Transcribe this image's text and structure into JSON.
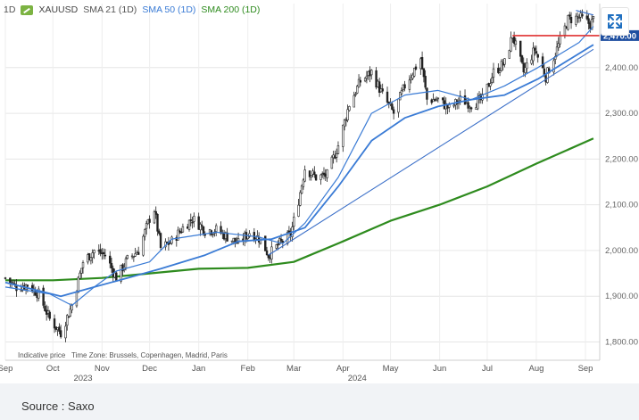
{
  "legend": {
    "timeframe": "1D",
    "symbol": "XAUUSD",
    "sma21": "SMA 21 (1D)",
    "sma50": "SMA 50 (1D)",
    "sma200": "SMA 200 (1D)"
  },
  "footnote": {
    "indicative": "Indicative price",
    "timezone": "Time Zone: Brussels, Copenhagen, Madrid, Paris"
  },
  "source": "Source : Saxo",
  "colors": {
    "candle": "#222222",
    "sma21": "#3a7bd5",
    "sma50": "#3a7bd5",
    "sma200": "#2e8b1e",
    "level": "#e03030",
    "price_tag": "#1f4fa0",
    "legend_badge": "#7cb342"
  },
  "icons": {
    "expand": "expand-arrows-icon",
    "symbol": "gold-badge-icon"
  },
  "chart_data": {
    "type": "candlestick",
    "x_range": [
      "2023-09-01",
      "2024-09-10"
    ],
    "ylim": [
      1760,
      2540
    ],
    "y_ticks": [
      "1,800.00",
      "1,900.00",
      "2,000.00",
      "2,100.00",
      "2,200.00",
      "2,300.00",
      "2,400.00"
    ],
    "x_ticks": [
      {
        "date": "2023-09-01",
        "label": "Sep"
      },
      {
        "date": "2023-10-01",
        "label": "Oct"
      },
      {
        "date": "2023-11-01",
        "label": "Nov"
      },
      {
        "date": "2023-12-01",
        "label": "Dec"
      },
      {
        "date": "2024-01-01",
        "label": "Jan"
      },
      {
        "date": "2024-02-01",
        "label": "Feb"
      },
      {
        "date": "2024-03-01",
        "label": "Mar"
      },
      {
        "date": "2024-04-01",
        "label": "Apr"
      },
      {
        "date": "2024-05-01",
        "label": "May"
      },
      {
        "date": "2024-06-01",
        "label": "Jun"
      },
      {
        "date": "2024-07-01",
        "label": "Jul"
      },
      {
        "date": "2024-08-01",
        "label": "Aug"
      },
      {
        "date": "2024-09-01",
        "label": "Sep"
      }
    ],
    "year_labels": [
      {
        "date": "2023-10-20",
        "label": "2023"
      },
      {
        "date": "2024-04-10",
        "label": "2024"
      }
    ],
    "current_price": {
      "value": 2470,
      "label": "2,470.00"
    },
    "close_path": [
      [
        "2023-09-01",
        1940
      ],
      [
        "2023-09-08",
        1920
      ],
      [
        "2023-09-15",
        1925
      ],
      [
        "2023-09-22",
        1905
      ],
      [
        "2023-09-29",
        1850
      ],
      [
        "2023-10-06",
        1820
      ],
      [
        "2023-10-13",
        1880
      ],
      [
        "2023-10-20",
        1975
      ],
      [
        "2023-10-27",
        2000
      ],
      [
        "2023-11-03",
        1990
      ],
      [
        "2023-11-10",
        1940
      ],
      [
        "2023-11-17",
        1980
      ],
      [
        "2023-11-24",
        2000
      ],
      [
        "2023-12-01",
        2070
      ],
      [
        "2023-12-04",
        2090
      ],
      [
        "2023-12-08",
        2005
      ],
      [
        "2023-12-15",
        2020
      ],
      [
        "2023-12-22",
        2050
      ],
      [
        "2023-12-28",
        2070
      ],
      [
        "2024-01-05",
        2045
      ],
      [
        "2024-01-12",
        2045
      ],
      [
        "2024-01-19",
        2030
      ],
      [
        "2024-01-26",
        2015
      ],
      [
        "2024-02-02",
        2040
      ],
      [
        "2024-02-09",
        2025
      ],
      [
        "2024-02-14",
        1990
      ],
      [
        "2024-02-21",
        2015
      ],
      [
        "2024-02-28",
        2035
      ],
      [
        "2024-03-04",
        2110
      ],
      [
        "2024-03-08",
        2180
      ],
      [
        "2024-03-15",
        2160
      ],
      [
        "2024-03-22",
        2165
      ],
      [
        "2024-03-29",
        2230
      ],
      [
        "2024-04-05",
        2320
      ],
      [
        "2024-04-12",
        2370
      ],
      [
        "2024-04-19",
        2390
      ],
      [
        "2024-04-26",
        2340
      ],
      [
        "2024-05-03",
        2300
      ],
      [
        "2024-05-10",
        2360
      ],
      [
        "2024-05-20",
        2420
      ],
      [
        "2024-05-24",
        2330
      ],
      [
        "2024-05-31",
        2330
      ],
      [
        "2024-06-07",
        2310
      ],
      [
        "2024-06-14",
        2330
      ],
      [
        "2024-06-21",
        2320
      ],
      [
        "2024-06-28",
        2330
      ],
      [
        "2024-07-05",
        2390
      ],
      [
        "2024-07-12",
        2410
      ],
      [
        "2024-07-17",
        2470
      ],
      [
        "2024-07-24",
        2390
      ],
      [
        "2024-07-31",
        2440
      ],
      [
        "2024-08-07",
        2380
      ],
      [
        "2024-08-14",
        2440
      ],
      [
        "2024-08-21",
        2505
      ],
      [
        "2024-08-28",
        2510
      ],
      [
        "2024-09-04",
        2495
      ],
      [
        "2024-09-06",
        2505
      ]
    ],
    "series": [
      {
        "name": "SMA 21 (1D)",
        "values": [
          [
            "2023-09-01",
            1920
          ],
          [
            "2023-09-29",
            1905
          ],
          [
            "2023-10-13",
            1880
          ],
          [
            "2023-10-27",
            1920
          ],
          [
            "2023-11-10",
            1955
          ],
          [
            "2023-12-01",
            1975
          ],
          [
            "2023-12-15",
            2025
          ],
          [
            "2024-01-12",
            2040
          ],
          [
            "2024-02-07",
            2030
          ],
          [
            "2024-02-23",
            2015
          ],
          [
            "2024-03-08",
            2060
          ],
          [
            "2024-03-29",
            2160
          ],
          [
            "2024-04-19",
            2300
          ],
          [
            "2024-05-10",
            2340
          ],
          [
            "2024-05-31",
            2350
          ],
          [
            "2024-06-21",
            2330
          ],
          [
            "2024-07-12",
            2360
          ],
          [
            "2024-08-02",
            2400
          ],
          [
            "2024-08-28",
            2455
          ],
          [
            "2024-09-06",
            2490
          ]
        ]
      },
      {
        "name": "SMA 50 (1D)",
        "values": [
          [
            "2023-09-01",
            1930
          ],
          [
            "2023-10-06",
            1900
          ],
          [
            "2023-10-27",
            1920
          ],
          [
            "2023-11-17",
            1940
          ],
          [
            "2023-12-08",
            1960
          ],
          [
            "2024-01-05",
            1990
          ],
          [
            "2024-01-26",
            2020
          ],
          [
            "2024-02-16",
            2025
          ],
          [
            "2024-03-08",
            2050
          ],
          [
            "2024-03-29",
            2140
          ],
          [
            "2024-04-19",
            2240
          ],
          [
            "2024-05-10",
            2290
          ],
          [
            "2024-05-31",
            2315
          ],
          [
            "2024-06-21",
            2330
          ],
          [
            "2024-07-12",
            2340
          ],
          [
            "2024-08-02",
            2375
          ],
          [
            "2024-08-23",
            2420
          ],
          [
            "2024-09-06",
            2450
          ]
        ]
      },
      {
        "name": "SMA 200 (1D)",
        "values": [
          [
            "2023-09-01",
            1935
          ],
          [
            "2023-10-01",
            1935
          ],
          [
            "2023-11-01",
            1940
          ],
          [
            "2023-12-01",
            1950
          ],
          [
            "2024-01-01",
            1960
          ],
          [
            "2024-02-01",
            1962
          ],
          [
            "2024-03-01",
            1975
          ],
          [
            "2024-04-01",
            2020
          ],
          [
            "2024-05-01",
            2065
          ],
          [
            "2024-06-01",
            2100
          ],
          [
            "2024-07-01",
            2140
          ],
          [
            "2024-08-01",
            2190
          ],
          [
            "2024-09-06",
            2245
          ]
        ]
      }
    ],
    "trendline": [
      [
        "2024-02-14",
        1990
      ],
      [
        "2024-09-06",
        2440
      ]
    ],
    "resistance": {
      "from": "2024-07-17",
      "to": "2024-09-10",
      "value": 2470
    },
    "channel_top": [
      [
        "2024-08-26",
        2525
      ],
      [
        "2024-09-06",
        2515
      ]
    ]
  }
}
